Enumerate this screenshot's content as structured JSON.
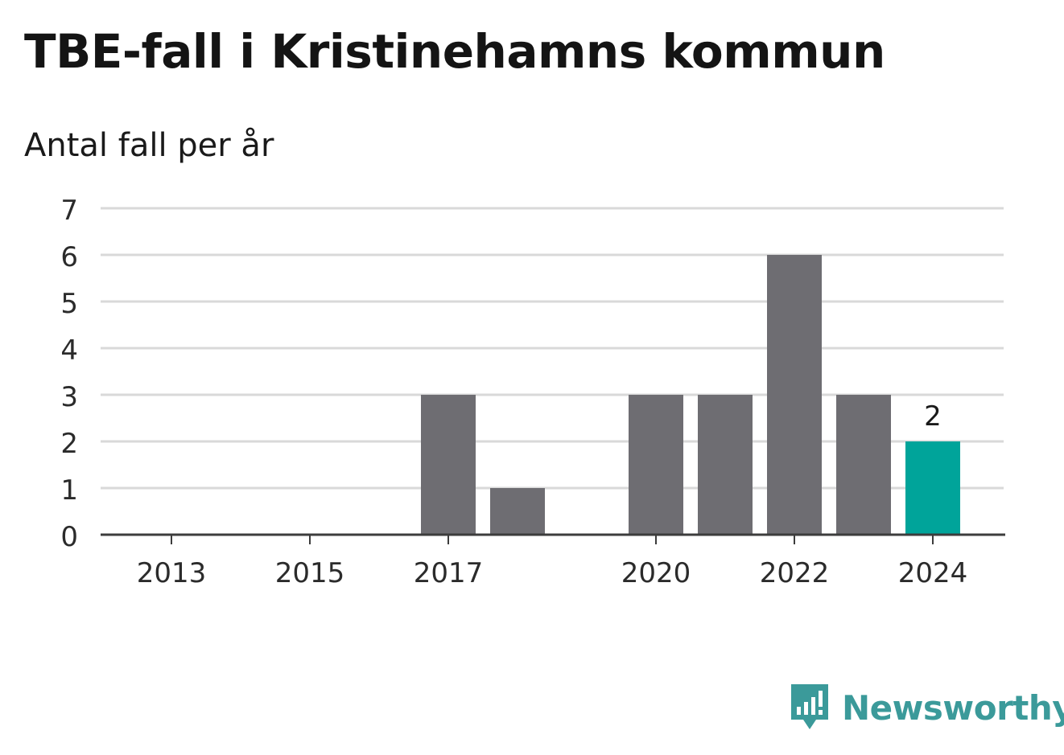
{
  "title": "TBE-fall i Kristinehamns kommun",
  "subtitle": "Antal fall per år",
  "brand": {
    "name": "Newsworthy",
    "icon": "newsworthy-logo-icon"
  },
  "colors": {
    "bar": "#6e6d72",
    "highlight": "#00a49a",
    "grid": "#d9d9d9",
    "axis": "#3c3c3c",
    "text": "#2b2b2b",
    "brand": "#3b9a9a"
  },
  "chart_data": {
    "type": "bar",
    "title": "TBE-fall i Kristinehamns kommun",
    "subtitle": "Antal fall per år",
    "xlabel": "",
    "ylabel": "",
    "categories": [
      "2013",
      "2014",
      "2015",
      "2016",
      "2017",
      "2018",
      "2019",
      "2020",
      "2021",
      "2022",
      "2023",
      "2024"
    ],
    "values": [
      0,
      0,
      0,
      0,
      3,
      1,
      0,
      3,
      3,
      6,
      3,
      2
    ],
    "x_tick_labels": [
      "2013",
      "2015",
      "2017",
      "2020",
      "2022",
      "2024"
    ],
    "y_ticks": [
      0,
      1,
      2,
      3,
      4,
      5,
      6,
      7
    ],
    "ylim": [
      0,
      7
    ],
    "grid": true,
    "highlight": {
      "category": "2024",
      "label": "2"
    }
  }
}
